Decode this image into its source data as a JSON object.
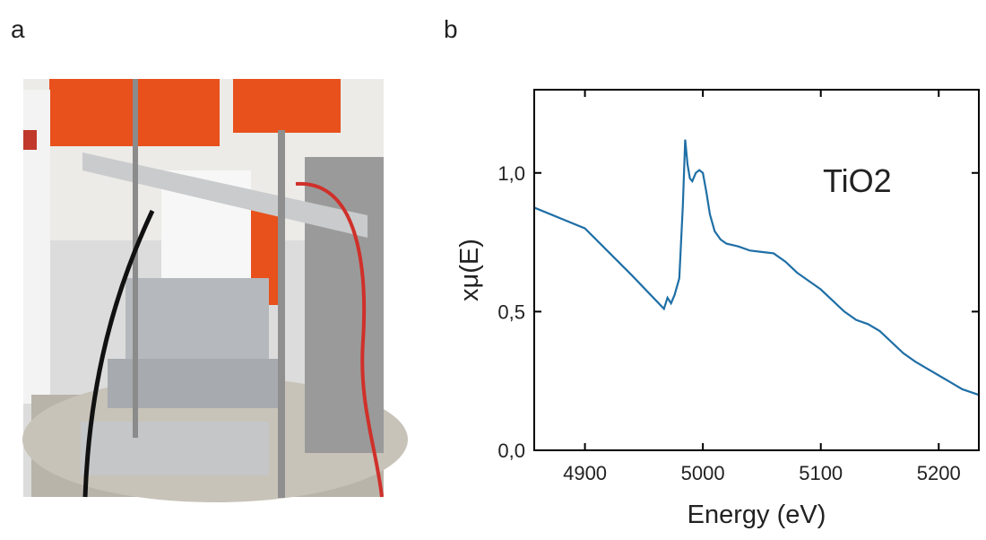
{
  "panels": [
    "a",
    "b"
  ],
  "chart_data": {
    "type": "line",
    "xlabel": "Energy (eV)",
    "ylabel": "xμ(E)",
    "annotation": "TiO2",
    "x": [
      4857,
      4900,
      4940,
      4967,
      4970,
      4973,
      4976,
      4980,
      4983,
      4985,
      4987,
      4989,
      4991,
      4994,
      4997,
      5000,
      5003,
      5006,
      5010,
      5015,
      5020,
      5030,
      5040,
      5050,
      5060,
      5070,
      5080,
      5090,
      5100,
      5110,
      5120,
      5130,
      5140,
      5150,
      5160,
      5170,
      5180,
      5190,
      5200,
      5210,
      5220,
      5234
    ],
    "series": [
      {
        "color": "#1f6fa6",
        "values": [
          0.875,
          0.8,
          0.63,
          0.51,
          0.55,
          0.53,
          0.56,
          0.62,
          0.88,
          1.12,
          1.03,
          0.98,
          0.97,
          1.0,
          1.01,
          1.0,
          0.93,
          0.85,
          0.79,
          0.76,
          0.745,
          0.735,
          0.72,
          0.715,
          0.71,
          0.68,
          0.64,
          0.61,
          0.58,
          0.54,
          0.5,
          0.47,
          0.455,
          0.43,
          0.39,
          0.35,
          0.32,
          0.295,
          0.27,
          0.245,
          0.22,
          0.2
        ]
      }
    ],
    "xlim": [
      4857,
      5234
    ],
    "ylim": [
      0,
      1.3
    ],
    "xticks": [
      4900,
      5000,
      5100,
      5200
    ],
    "yticks": [
      {
        "value": 0,
        "label": "0,0"
      },
      {
        "value": 0.5,
        "label": "0,5"
      },
      {
        "value": 1.0,
        "label": "1,0"
      }
    ]
  }
}
